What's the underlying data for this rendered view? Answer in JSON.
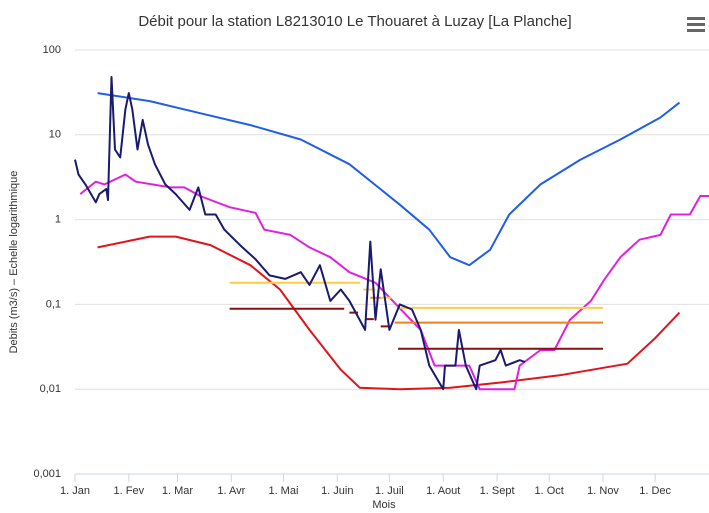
{
  "chart_data": {
    "type": "line",
    "title": "Débit pour la station L8213010 Le Thouaret à Luzay [La Planche]",
    "xlabel": "Mois",
    "ylabel": "Debits (m3/s) – Echelle logarithmique",
    "log_y": true,
    "grid": true,
    "xlim": [
      0,
      365
    ],
    "ylim": [
      0.001,
      100
    ],
    "xticks": [
      {
        "value": 0,
        "label": "1. Jan"
      },
      {
        "value": 31,
        "label": "1. Fev"
      },
      {
        "value": 59,
        "label": "1. Mar"
      },
      {
        "value": 90,
        "label": "1. Avr"
      },
      {
        "value": 120,
        "label": "1. Mai"
      },
      {
        "value": 151,
        "label": "1. Juin"
      },
      {
        "value": 181,
        "label": "1. Juil"
      },
      {
        "value": 212,
        "label": "1. Aout"
      },
      {
        "value": 243,
        "label": "1. Sept"
      },
      {
        "value": 273,
        "label": "1. Oct"
      },
      {
        "value": 304,
        "label": "1. Nov"
      },
      {
        "value": 334,
        "label": "1. Dec"
      }
    ],
    "yticks": [
      {
        "value": 0.001,
        "label": "0,001"
      },
      {
        "value": 0.01,
        "label": "0,01"
      },
      {
        "value": 0.1,
        "label": "0,1"
      },
      1,
      10,
      100
    ],
    "series": [
      {
        "color": "#1f5fe8",
        "x": [
          13,
          43,
          72,
          101,
          130,
          158,
          187,
          204,
          216,
          227,
          239,
          250,
          268,
          291,
          314,
          337,
          348
        ],
        "values": [
          31,
          25,
          18,
          13,
          8.8,
          4.5,
          1.5,
          0.76,
          0.36,
          0.29,
          0.44,
          1.15,
          2.6,
          5.1,
          8.8,
          16,
          24
        ]
      },
      {
        "color": "#e0141a",
        "x": [
          13,
          43,
          58,
          78,
          101,
          118,
          135,
          153,
          164,
          187,
          216,
          245,
          279,
          318,
          334,
          348
        ],
        "values": [
          0.47,
          0.63,
          0.63,
          0.5,
          0.29,
          0.15,
          0.05,
          0.017,
          0.0104,
          0.01,
          0.0104,
          0.012,
          0.0146,
          0.02,
          0.04,
          0.08
        ]
      },
      {
        "color": "#e020e0",
        "x": [
          3,
          12,
          17,
          29,
          35,
          55,
          63,
          72,
          89,
          104,
          109,
          124,
          135,
          147,
          158,
          173,
          187,
          199,
          207,
          227,
          233,
          253,
          256,
          268,
          276,
          285,
          297,
          305,
          314,
          325,
          337,
          343,
          354,
          360,
          365
        ],
        "values": [
          2.0,
          2.8,
          2.6,
          3.4,
          2.8,
          2.4,
          2.4,
          1.9,
          1.4,
          1.2,
          0.76,
          0.66,
          0.47,
          0.36,
          0.24,
          0.18,
          0.09,
          0.05,
          0.019,
          0.019,
          0.01,
          0.01,
          0.019,
          0.029,
          0.029,
          0.066,
          0.11,
          0.2,
          0.36,
          0.58,
          0.66,
          1.15,
          1.15,
          1.9,
          1.9
        ]
      },
      {
        "color": "#ffcc44",
        "x": [
          89,
          164,
          165,
          166,
          173,
          174,
          176,
          182,
          183,
          187,
          304
        ],
        "values": [
          0.18,
          0.18,
          null,
          0.15,
          0.15,
          null,
          0.12,
          0.12,
          null,
          0.091,
          0.091
        ]
      },
      {
        "color": "#f07f20",
        "x": [
          170,
          176,
          177,
          184,
          304
        ],
        "values": [
          0.12,
          0.12,
          null,
          0.061,
          0.061
        ]
      },
      {
        "color": "#8b1010",
        "x": [
          89,
          155,
          156,
          158,
          163,
          164,
          167,
          172,
          173,
          176,
          181,
          182,
          186,
          304
        ],
        "values": [
          0.089,
          0.089,
          null,
          0.08,
          0.08,
          null,
          0.067,
          0.067,
          null,
          0.055,
          0.055,
          null,
          0.03,
          0.03
        ]
      },
      {
        "color": "#1a1a6e",
        "x": [
          0,
          2,
          6,
          12,
          14,
          18,
          19,
          21,
          23,
          26,
          29,
          31,
          33,
          36,
          39,
          42,
          46,
          52,
          58,
          66,
          71,
          75,
          81,
          86,
          95,
          104,
          112,
          121,
          130,
          135,
          141,
          147,
          153,
          158,
          167,
          170,
          173,
          176,
          181,
          187,
          194,
          199,
          204,
          212,
          213,
          219,
          221,
          225,
          231,
          233,
          242,
          245,
          248,
          256,
          259
        ],
        "values": [
          5.1,
          3.4,
          2.6,
          1.6,
          2.0,
          2.3,
          1.7,
          48,
          6.7,
          5.4,
          20,
          31,
          20,
          6.7,
          15,
          7.7,
          4.5,
          2.6,
          2.0,
          1.3,
          2.4,
          1.15,
          1.15,
          0.76,
          0.5,
          0.34,
          0.22,
          0.2,
          0.24,
          0.17,
          0.29,
          0.11,
          0.15,
          0.11,
          0.05,
          0.55,
          0.066,
          0.26,
          0.05,
          0.1,
          0.087,
          0.05,
          0.019,
          0.01,
          0.019,
          0.019,
          0.05,
          0.019,
          0.01,
          0.019,
          0.022,
          0.029,
          0.019,
          0.022,
          0.021
        ]
      }
    ]
  }
}
